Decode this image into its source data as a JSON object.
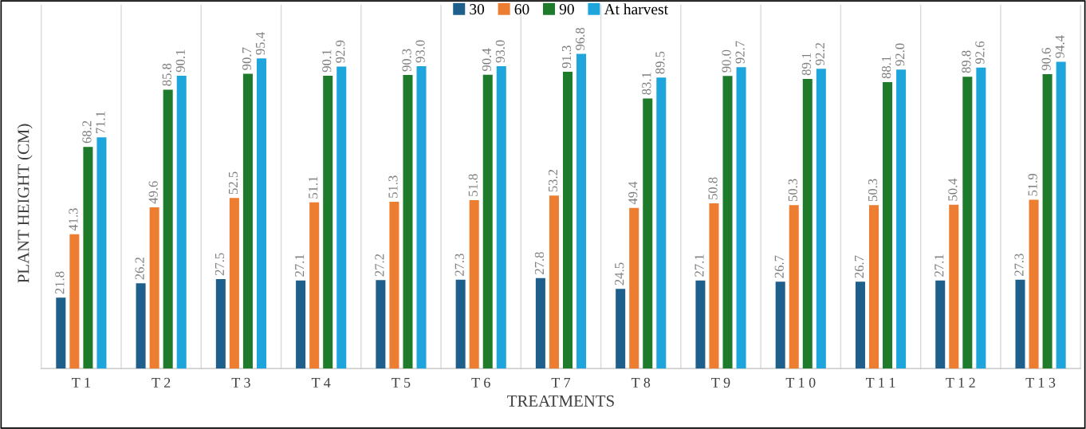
{
  "chart_data": {
    "type": "bar",
    "xlabel": "TREATMENTS",
    "ylabel": "PLANT HEIGHT (CM)",
    "categories": [
      "T 1",
      "T 2",
      "T 3",
      "T 4",
      "T 5",
      "T 6",
      "T 7",
      "T 8",
      "T 9",
      "T 1 0",
      "T 1 1",
      "T 1 2",
      "T 1 3"
    ],
    "tick_labels": "x",
    "grid": "x",
    "legend": "top",
    "series": [
      {
        "name": "30",
        "color": "#1f5f8b",
        "values": [
          21.8,
          26.2,
          27.5,
          27.1,
          27.2,
          27.3,
          27.8,
          24.5,
          27.1,
          26.7,
          26.7,
          27.1,
          27.3
        ],
        "value_labels": [
          "21.8",
          "26.2",
          "27.5",
          "27.1",
          "27.2",
          "27.3",
          "27.8",
          "24.5",
          "27.1",
          "26.7",
          "26.7",
          "27.1",
          "27.3"
        ]
      },
      {
        "name": "60",
        "color": "#ed7d31",
        "values": [
          41.3,
          49.6,
          52.5,
          51.1,
          51.3,
          51.8,
          53.2,
          49.4,
          50.8,
          50.3,
          50.3,
          50.4,
          51.9
        ],
        "value_labels": [
          "41.3",
          "49.6",
          "52.5",
          "51.1",
          "51.3",
          "51.8",
          "53.2",
          "49.4",
          "50.8",
          "50.3",
          "50.3",
          "50.4",
          "51.9"
        ]
      },
      {
        "name": "90",
        "color": "#1e7b2b",
        "values": [
          68.2,
          85.8,
          90.7,
          90.1,
          90.3,
          90.4,
          91.3,
          83.1,
          90.0,
          89.1,
          88.1,
          89.8,
          90.6
        ],
        "value_labels": [
          "68.2",
          "85.8",
          "90.7",
          "90.1",
          "90.3",
          "90.4",
          "91.3",
          "83.1",
          "90.0",
          "89.1",
          "88.1",
          "89.8",
          "90.6"
        ]
      },
      {
        "name": "At harvest",
        "color": "#1ea6dc",
        "values": [
          71.1,
          90.1,
          95.4,
          92.9,
          93.0,
          93.0,
          96.8,
          89.5,
          92.7,
          92.2,
          92.0,
          92.6,
          94.4
        ],
        "value_labels": [
          "71.1",
          "90.1",
          "95.4",
          "92.9",
          "93.0",
          "93.0",
          "96.8",
          "89.5",
          "92.7",
          "92.2",
          "92.0",
          "92.6",
          "94.4"
        ]
      }
    ]
  }
}
